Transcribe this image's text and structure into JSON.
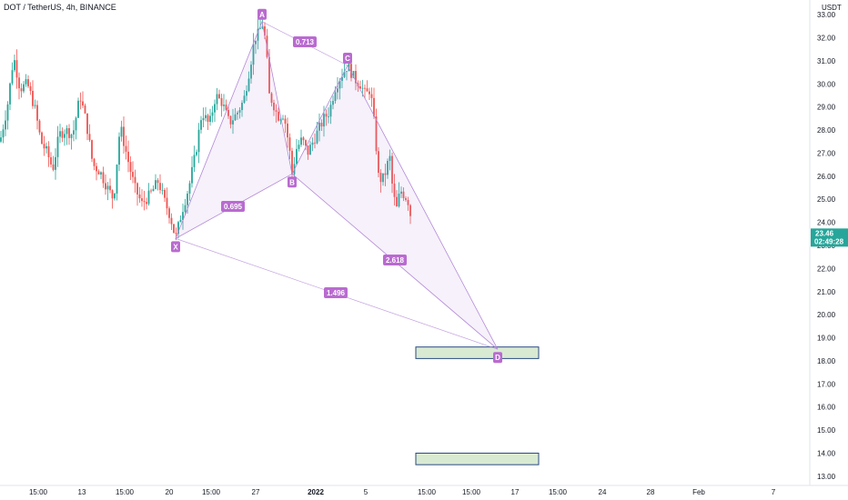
{
  "header": {
    "title": "DOT / TetherUS, 4h, BINANCE",
    "currency": "USDT"
  },
  "price_tag": {
    "price": "23.46",
    "countdown": "02:49:28",
    "color": "#26a69a"
  },
  "colors": {
    "up": "#26a69a",
    "down": "#ef5350",
    "pattern": "#b388d8",
    "label": "#b96bd0",
    "box_fill": "#d9ead3",
    "box_stroke": "#2a4a80"
  },
  "chart_data": {
    "type": "candlestick",
    "title": "DOT / TetherUS, 4h, BINANCE",
    "ylim": [
      12.6,
      33.4
    ],
    "y_ticks": [
      "13.00",
      "14.00",
      "15.00",
      "16.00",
      "17.00",
      "18.00",
      "19.00",
      "20.00",
      "21.00",
      "22.00",
      "23.00",
      "24.00",
      "25.00",
      "26.00",
      "27.00",
      "28.00",
      "29.00",
      "30.00",
      "31.00",
      "32.00",
      "33.00"
    ],
    "x_ticks": [
      "15:00",
      "13",
      "15:00",
      "20",
      "15:00",
      "27",
      "2022",
      "5",
      "15:00",
      "15:00",
      "17",
      "15:00",
      "24",
      "28",
      "Feb",
      "7"
    ],
    "last_price": 23.46,
    "pattern": {
      "points": [
        {
          "label": "X",
          "bar": 193,
          "price": 23.3
        },
        {
          "label": "A",
          "bar": 288,
          "price": 32.7
        },
        {
          "label": "B",
          "bar": 321,
          "price": 26.1
        },
        {
          "label": "C",
          "bar": 382,
          "price": 30.8
        },
        {
          "label": "D",
          "bar": 547,
          "price": 18.5
        }
      ],
      "ratios": [
        {
          "value": "0.713",
          "between": "A-C"
        },
        {
          "value": "0.695",
          "between": "X-B"
        },
        {
          "value": "2.618",
          "between": "B-D"
        },
        {
          "value": "1.496",
          "between": "X-D"
        }
      ]
    },
    "zones": [
      {
        "top": 18.6,
        "bottom": 18.1
      },
      {
        "top": 14.0,
        "bottom": 13.5
      }
    ],
    "price_path": [
      [
        0,
        27.5
      ],
      [
        8,
        29.0
      ],
      [
        15,
        31.2
      ],
      [
        22,
        29.8
      ],
      [
        30,
        30.0
      ],
      [
        38,
        29.0
      ],
      [
        45,
        27.5
      ],
      [
        52,
        27.0
      ],
      [
        58,
        26.3
      ],
      [
        65,
        27.8
      ],
      [
        72,
        28.0
      ],
      [
        80,
        27.8
      ],
      [
        88,
        29.5
      ],
      [
        95,
        28.3
      ],
      [
        102,
        26.5
      ],
      [
        110,
        26.2
      ],
      [
        118,
        25.5
      ],
      [
        125,
        25.0
      ],
      [
        132,
        28.2
      ],
      [
        140,
        26.8
      ],
      [
        148,
        25.5
      ],
      [
        156,
        24.8
      ],
      [
        165,
        25.2
      ],
      [
        174,
        25.8
      ],
      [
        180,
        25.0
      ],
      [
        187,
        24.3
      ],
      [
        193,
        23.3
      ],
      [
        200,
        24.5
      ],
      [
        208,
        25.6
      ],
      [
        215,
        27.0
      ],
      [
        222,
        28.8
      ],
      [
        230,
        28.2
      ],
      [
        237,
        29.5
      ],
      [
        244,
        29.2
      ],
      [
        252,
        28.3
      ],
      [
        260,
        28.7
      ],
      [
        268,
        29.3
      ],
      [
        275,
        30.8
      ],
      [
        280,
        32.0
      ],
      [
        285,
        32.2
      ],
      [
        288,
        32.7
      ],
      [
        292,
        31.8
      ],
      [
        296,
        29.5
      ],
      [
        300,
        29.2
      ],
      [
        305,
        28.6
      ],
      [
        312,
        28.7
      ],
      [
        318,
        27.2
      ],
      [
        321,
        26.1
      ],
      [
        326,
        27.2
      ],
      [
        332,
        27.6
      ],
      [
        338,
        27.0
      ],
      [
        344,
        27.5
      ],
      [
        350,
        28.0
      ],
      [
        356,
        28.5
      ],
      [
        362,
        28.8
      ],
      [
        368,
        29.8
      ],
      [
        374,
        30.3
      ],
      [
        382,
        30.8
      ],
      [
        390,
        30.2
      ],
      [
        396,
        30.0
      ],
      [
        402,
        29.5
      ],
      [
        407,
        29.8
      ],
      [
        412,
        28.0
      ],
      [
        416,
        26.0
      ],
      [
        420,
        25.8
      ],
      [
        425,
        26.3
      ],
      [
        428,
        27.0
      ],
      [
        432,
        25.2
      ],
      [
        436,
        24.6
      ],
      [
        440,
        25.4
      ],
      [
        446,
        25.1
      ],
      [
        450,
        24.8
      ],
      [
        453,
        23.46
      ]
    ]
  }
}
